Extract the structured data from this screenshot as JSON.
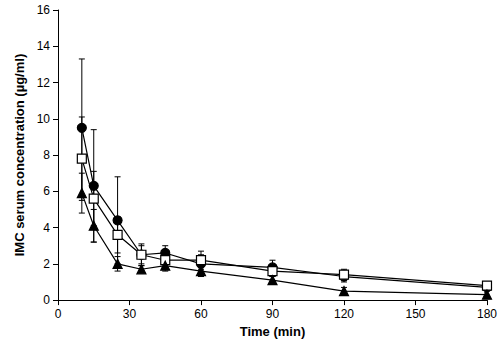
{
  "chart_data": {
    "type": "line",
    "x_label": "Time (min)",
    "y_label": "IMC serum concentration (µg/ml)",
    "xlim": [
      0,
      180
    ],
    "xticks": [
      0,
      30,
      60,
      90,
      120,
      150,
      180
    ],
    "ylim": [
      0,
      16
    ],
    "yticks": [
      0,
      2,
      4,
      6,
      8,
      10,
      12,
      14,
      16
    ],
    "grid": false,
    "series": [
      {
        "color": "#000000",
        "marker": "circle",
        "x": [
          10,
          15,
          25,
          35,
          45,
          60,
          90,
          120,
          180
        ],
        "values": [
          9.5,
          6.3,
          4.4,
          2.5,
          2.6,
          2.0,
          1.8,
          1.3,
          0.7
        ],
        "errors": [
          3.8,
          3.1,
          2.4,
          0.5,
          0.4,
          0.5,
          0.4,
          0.3,
          0.1
        ]
      },
      {
        "color": "#000000",
        "marker": "open_square",
        "x": [
          10,
          15,
          25,
          35,
          45,
          60,
          90,
          120,
          180
        ],
        "values": [
          7.8,
          5.6,
          3.6,
          2.5,
          2.2,
          2.2,
          1.6,
          1.4,
          0.8
        ],
        "errors": [
          2.3,
          1.5,
          1.0,
          0.6,
          0.4,
          0.5,
          0.3,
          0.3,
          0.1
        ]
      },
      {
        "color": "#000000",
        "marker": "triangle",
        "x": [
          10,
          15,
          25,
          35,
          45,
          60,
          90,
          120,
          180
        ],
        "values": [
          5.9,
          4.1,
          2.0,
          1.7,
          1.9,
          1.6,
          1.1,
          0.5,
          0.3
        ],
        "errors": [
          1.1,
          0.9,
          0.4,
          0.2,
          0.3,
          0.3,
          0.2,
          0.2,
          0.1
        ]
      }
    ]
  }
}
